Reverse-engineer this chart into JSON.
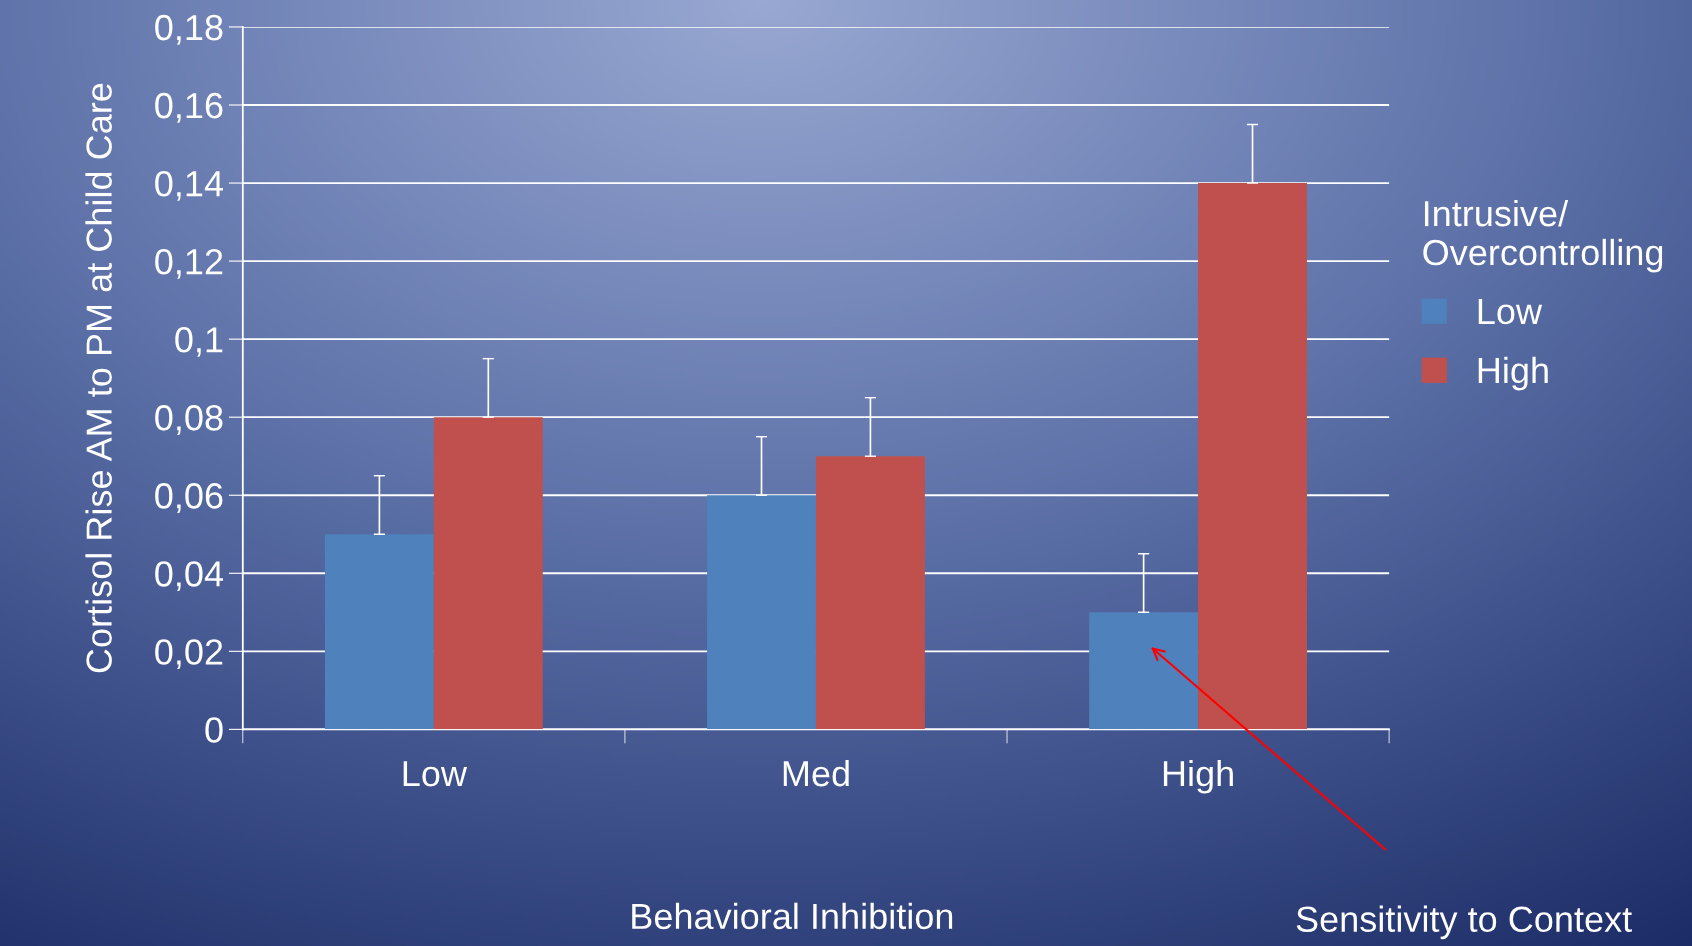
{
  "chart_data": {
    "type": "bar",
    "ylabel": "Cortisol Rise AM to PM at Child Care",
    "xlabel": "Behavioral Inhibition",
    "legend_title": "Intrusive/\nOvercontrolling",
    "categories": [
      "Low",
      "Med",
      "High"
    ],
    "series": [
      {
        "name": "Low",
        "color": "#4f81bd",
        "values": [
          0.05,
          0.06,
          0.03
        ],
        "errors": [
          [
            0.05,
            0.065
          ],
          [
            0.06,
            0.075
          ],
          [
            0.03,
            0.045
          ]
        ]
      },
      {
        "name": "High",
        "color": "#c0504d",
        "values": [
          0.08,
          0.07,
          0.14
        ],
        "errors": [
          [
            0.08,
            0.095
          ],
          [
            0.07,
            0.085
          ],
          [
            0.14,
            0.155
          ]
        ]
      }
    ],
    "ylim": [
      0,
      0.18
    ],
    "yticks": [
      0,
      {
        "value": 0.02,
        "label": "0,02"
      },
      {
        "value": 0.04,
        "label": "0,04"
      },
      {
        "value": 0.06,
        "label": "0,06"
      },
      {
        "value": 0.08,
        "label": "0,08"
      },
      {
        "value": 0.1,
        "label": "0,1"
      },
      {
        "value": 0.12,
        "label": "0,12"
      },
      {
        "value": 0.14,
        "label": "0,14"
      },
      {
        "value": 0.16,
        "label": "0,16"
      },
      {
        "value": 0.18,
        "label": "0,18"
      }
    ],
    "grid": "y",
    "legend": "right",
    "annotations": [
      "Sensitivity to Context"
    ]
  }
}
